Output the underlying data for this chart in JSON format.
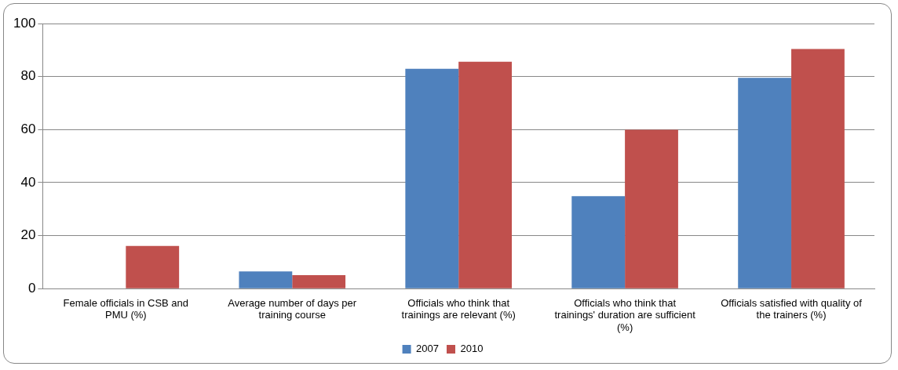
{
  "chart_data": {
    "type": "bar",
    "categories": [
      "Female officials in CSB and PMU (%)",
      "Average number of days per training course",
      "Officials who think that trainings are relevant (%)",
      "Officials who think that trainings' duration are sufficient (%)",
      "Officials satisfied with quality of the trainers (%)"
    ],
    "series": [
      {
        "name": "2007",
        "color": "#4f81bd",
        "values": [
          null,
          6.5,
          82.9,
          34.9,
          79.5
        ]
      },
      {
        "name": "2010",
        "color": "#c0504d",
        "values": [
          16.1,
          5.1,
          85.6,
          59.9,
          90.4
        ]
      }
    ],
    "ylim": [
      0,
      100
    ],
    "yticks": [
      0,
      20,
      40,
      60,
      80,
      100
    ],
    "grid": "y",
    "legend": "bottom"
  }
}
